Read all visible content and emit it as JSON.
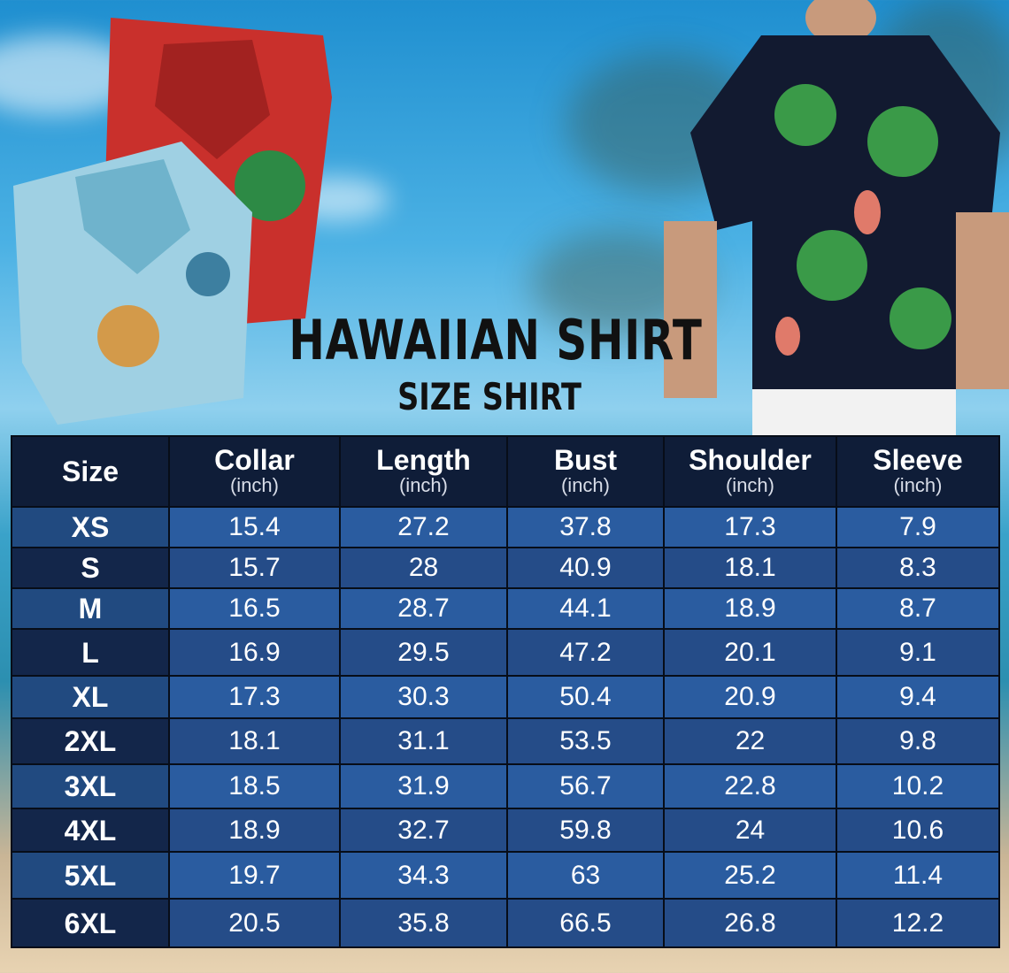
{
  "title": "HAWAIIAN SHIRT",
  "subtitle": "SIZE SHIRT",
  "table": {
    "headers": [
      {
        "label": "Size",
        "unit": ""
      },
      {
        "label": "Collar",
        "unit": "(inch)"
      },
      {
        "label": "Length",
        "unit": "(inch)"
      },
      {
        "label": "Bust",
        "unit": "(inch)"
      },
      {
        "label": "Shoulder",
        "unit": "(inch)"
      },
      {
        "label": "Sleeve",
        "unit": "(inch)"
      }
    ],
    "rows": [
      [
        "XS",
        "15.4",
        "27.2",
        "37.8",
        "17.3",
        "7.9"
      ],
      [
        "S",
        "15.7",
        "28",
        "40.9",
        "18.1",
        "8.3"
      ],
      [
        "M",
        "16.5",
        "28.7",
        "44.1",
        "18.9",
        "8.7"
      ],
      [
        "L",
        "16.9",
        "29.5",
        "47.2",
        "20.1",
        "9.1"
      ],
      [
        "XL",
        "17.3",
        "30.3",
        "50.4",
        "20.9",
        "9.4"
      ],
      [
        "2XL",
        "18.1",
        "31.1",
        "53.5",
        "22",
        "9.8"
      ],
      [
        "3XL",
        "18.5",
        "31.9",
        "56.7",
        "22.8",
        "10.2"
      ],
      [
        "4XL",
        "18.9",
        "32.7",
        "59.8",
        "24",
        "10.6"
      ],
      [
        "5XL",
        "19.7",
        "34.3",
        "63",
        "25.2",
        "11.4"
      ],
      [
        "6XL",
        "20.5",
        "35.8",
        "66.5",
        "26.8",
        "12.2"
      ]
    ]
  }
}
